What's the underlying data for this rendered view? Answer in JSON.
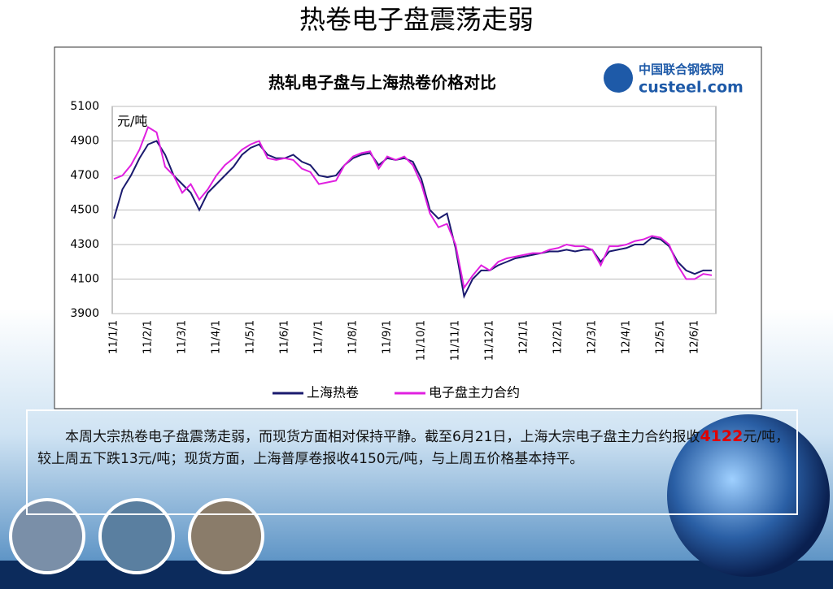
{
  "slide": {
    "title": "热卷电子盘震荡走弱",
    "logo": {
      "name": "中国联合钢铁网",
      "site": "custeel.com"
    },
    "paragraph": {
      "before": "本周大宗热卷电子盘震荡走弱，而现货方面相对保持平静。截至6月21日，上海大宗电子盘主力合约报收",
      "highlight": "4122",
      "after": "元/吨，较上周五下跌13元/吨；现货方面，上海普厚卷报收4150元/吨，与上周五价格基本持平。"
    }
  },
  "chart_data": {
    "type": "line",
    "title": "热轧电子盘与上海热卷价格对比",
    "y_label": "元/吨",
    "categories": [
      "11/1/1",
      null,
      null,
      null,
      "11/2/1",
      null,
      null,
      null,
      "11/3/1",
      null,
      null,
      null,
      "11/4/1",
      null,
      null,
      null,
      "11/5/1",
      null,
      null,
      null,
      "11/6/1",
      null,
      null,
      null,
      "11/7/1",
      null,
      null,
      null,
      "11/8/1",
      null,
      null,
      null,
      "11/9/1",
      null,
      null,
      null,
      "11/10/1",
      null,
      null,
      null,
      "11/11/1",
      null,
      null,
      null,
      "11/12/1",
      null,
      null,
      null,
      "12/1/1",
      null,
      null,
      null,
      "12/2/1",
      null,
      null,
      null,
      "12/3/1",
      null,
      null,
      null,
      "12/4/1",
      null,
      null,
      null,
      "12/5/1",
      null,
      null,
      null,
      "12/6/1",
      null,
      null
    ],
    "series": [
      {
        "name": "上海热卷",
        "color": "#1a1a6e",
        "values": [
          4450,
          4620,
          4700,
          4800,
          4880,
          4900,
          4820,
          4700,
          4650,
          4600,
          4500,
          4600,
          4650,
          4700,
          4750,
          4820,
          4860,
          4880,
          4820,
          4800,
          4800,
          4820,
          4780,
          4760,
          4700,
          4690,
          4700,
          4760,
          4800,
          4820,
          4830,
          4760,
          4800,
          4790,
          4800,
          4780,
          4680,
          4500,
          4450,
          4480,
          4280,
          4000,
          4100,
          4150,
          4150,
          4180,
          4200,
          4220,
          4230,
          4240,
          4250,
          4260,
          4260,
          4270,
          4260,
          4270,
          4270,
          4200,
          4260,
          4270,
          4280,
          4300,
          4300,
          4340,
          4330,
          4290,
          4200,
          4150,
          4130,
          4150,
          4150
        ]
      },
      {
        "name": "电子盘主力合约",
        "color": "#e020e0",
        "values": [
          4680,
          4700,
          4760,
          4850,
          4980,
          4950,
          4750,
          4700,
          4600,
          4650,
          4560,
          4620,
          4700,
          4760,
          4800,
          4850,
          4880,
          4900,
          4800,
          4790,
          4800,
          4790,
          4740,
          4720,
          4650,
          4660,
          4670,
          4760,
          4810,
          4830,
          4840,
          4740,
          4810,
          4790,
          4810,
          4760,
          4650,
          4480,
          4400,
          4420,
          4300,
          4050,
          4120,
          4180,
          4150,
          4200,
          4220,
          4230,
          4240,
          4250,
          4250,
          4270,
          4280,
          4300,
          4290,
          4290,
          4270,
          4180,
          4290,
          4290,
          4300,
          4320,
          4330,
          4350,
          4340,
          4300,
          4180,
          4100,
          4100,
          4130,
          4122
        ]
      }
    ],
    "ylim": [
      3900,
      5100
    ],
    "yticks": [
      3900,
      4100,
      4300,
      4500,
      4700,
      4900,
      5100
    ],
    "grid": true
  }
}
